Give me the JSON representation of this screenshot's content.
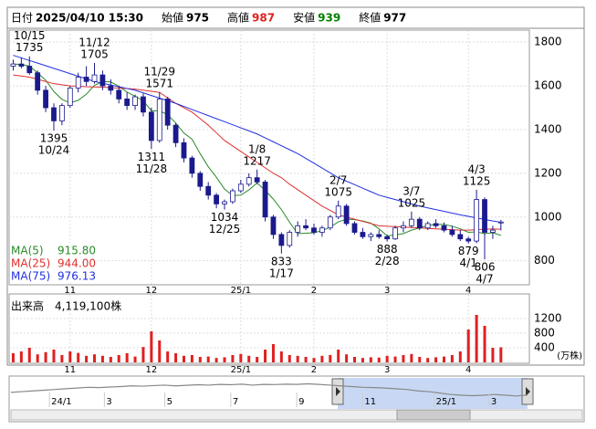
{
  "header": {
    "items": [
      {
        "label": "日付",
        "value": "2025/04/10 15:30"
      },
      {
        "label": "始値",
        "value": 975
      },
      {
        "label": "高値",
        "value": 987,
        "color": "#e02020"
      },
      {
        "label": "安値",
        "value": 939,
        "color": "#008000"
      },
      {
        "label": "終値",
        "value": 977
      }
    ]
  },
  "chart_data": {
    "type": "candlestick",
    "up_color": "#ffffff",
    "down_color": "#1a1a8c",
    "edge_color": "#1a1a8c",
    "grid": true,
    "open": [
      1690,
      1700,
      1690,
      1660,
      1580,
      1500,
      1440,
      1510,
      1590,
      1640,
      1620,
      1650,
      1600,
      1580,
      1540,
      1510,
      1550,
      1480,
      1350,
      1540,
      1420,
      1340,
      1270,
      1200,
      1140,
      1100,
      1060,
      1070,
      1120,
      1150,
      1180,
      1160,
      1000,
      920,
      870,
      930,
      960,
      950,
      930,
      950,
      1000,
      1050,
      970,
      930,
      910,
      920,
      910,
      900,
      950,
      960,
      990,
      950,
      970,
      960,
      940,
      920,
      900,
      890,
      1080,
      930,
      975
    ],
    "high": [
      1720,
      1730,
      1735,
      1670,
      1600,
      1520,
      1520,
      1600,
      1660,
      1690,
      1705,
      1670,
      1630,
      1600,
      1570,
      1560,
      1565,
      1500,
      1571,
      1550,
      1430,
      1360,
      1280,
      1210,
      1160,
      1110,
      1080,
      1130,
      1170,
      1200,
      1217,
      1170,
      1010,
      930,
      940,
      980,
      990,
      970,
      960,
      1010,
      1075,
      1060,
      980,
      950,
      930,
      940,
      920,
      960,
      980,
      1025,
      1000,
      980,
      990,
      975,
      960,
      940,
      910,
      1125,
      1090,
      960,
      987
    ],
    "low": [
      1670,
      1680,
      1650,
      1560,
      1480,
      1395,
      1420,
      1500,
      1570,
      1600,
      1610,
      1580,
      1560,
      1520,
      1490,
      1490,
      1460,
      1311,
      1340,
      1400,
      1320,
      1250,
      1180,
      1120,
      1080,
      1040,
      1034,
      1060,
      1110,
      1140,
      1150,
      980,
      900,
      833,
      860,
      910,
      940,
      920,
      910,
      940,
      990,
      960,
      920,
      900,
      890,
      900,
      888,
      895,
      930,
      950,
      940,
      940,
      950,
      930,
      910,
      890,
      879,
      880,
      806,
      900,
      939
    ],
    "close": [
      1700,
      1690,
      1660,
      1580,
      1500,
      1440,
      1510,
      1590,
      1640,
      1620,
      1650,
      1600,
      1580,
      1540,
      1510,
      1550,
      1480,
      1350,
      1540,
      1420,
      1340,
      1270,
      1200,
      1140,
      1100,
      1060,
      1070,
      1120,
      1150,
      1180,
      1160,
      1000,
      920,
      870,
      930,
      960,
      950,
      930,
      950,
      1000,
      1050,
      970,
      930,
      910,
      920,
      910,
      900,
      950,
      960,
      990,
      950,
      970,
      960,
      940,
      920,
      900,
      890,
      1080,
      930,
      940,
      977
    ],
    "series": [
      {
        "name": "MA(5)",
        "color": "#2a8a2a",
        "legend_value": "915.80",
        "values": [
          1700,
          1698,
          1690,
          1660,
          1626,
          1574,
          1538,
          1522,
          1534,
          1562,
          1602,
          1620,
          1618,
          1598,
          1572,
          1552,
          1532,
          1486,
          1486,
          1468,
          1430,
          1384,
          1356,
          1290,
          1230,
          1182,
          1128,
          1098,
          1100,
          1124,
          1156,
          1122,
          1082,
          1034,
          976,
          924,
          926,
          928,
          938,
          954,
          978,
          990,
          988,
          982,
          972,
          946,
          914,
          918,
          924,
          940,
          950,
          962,
          966,
          966,
          958,
          946,
          930,
          932,
          924,
          928,
          916
        ]
      },
      {
        "name": "MA(25)",
        "color": "#e03030",
        "legend_value": "944.00",
        "values": [
          1650,
          1645,
          1640,
          1630,
          1620,
          1610,
          1605,
          1600,
          1598,
          1596,
          1595,
          1594,
          1592,
          1590,
          1588,
          1585,
          1580,
          1575,
          1570,
          1545,
          1520,
          1500,
          1480,
          1450,
          1420,
          1385,
          1350,
          1325,
          1300,
          1275,
          1250,
          1225,
          1200,
          1180,
          1150,
          1125,
          1100,
          1075,
          1050,
          1030,
          1010,
          1000,
          990,
          980,
          970,
          960,
          958,
          956,
          954,
          952,
          950,
          948,
          946,
          944,
          942,
          940,
          940,
          942,
          944,
          945,
          944
        ]
      },
      {
        "name": "MA(75)",
        "color": "#2030e0",
        "legend_value": "976.13",
        "values": [
          1740,
          1728,
          1716,
          1704,
          1692,
          1680,
          1668,
          1656,
          1644,
          1632,
          1620,
          1612,
          1604,
          1596,
          1588,
          1580,
          1568,
          1556,
          1544,
          1532,
          1520,
          1506,
          1492,
          1478,
          1464,
          1450,
          1436,
          1422,
          1408,
          1394,
          1380,
          1362,
          1344,
          1326,
          1308,
          1290,
          1268,
          1246,
          1224,
          1202,
          1180,
          1164,
          1148,
          1132,
          1116,
          1100,
          1090,
          1080,
          1070,
          1060,
          1050,
          1042,
          1034,
          1026,
          1018,
          1010,
          1003,
          996,
          989,
          982,
          976
        ]
      }
    ],
    "annotations": [
      {
        "date": "10/15",
        "value": 1735
      },
      {
        "date": "11/12",
        "value": 1705
      },
      {
        "date": "11/29",
        "value": 1571
      },
      {
        "date": "10/24",
        "value": 1395
      },
      {
        "date": "11/28",
        "value": 1311
      },
      {
        "date": "1/8",
        "value": 1217
      },
      {
        "date": "12/25",
        "value": 1034
      },
      {
        "date": "1/17",
        "value": 833
      },
      {
        "date": "2/7",
        "value": 1075
      },
      {
        "date": "3/7",
        "value": 1025
      },
      {
        "date": "2/28",
        "value": 888
      },
      {
        "date": "4/3",
        "value": 1125
      },
      {
        "date": "4/1",
        "value": 879
      },
      {
        "date": "4/7",
        "value": 806
      }
    ],
    "xlim": [
      -0.5,
      63.5
    ],
    "xticks": [
      {
        "value": 7,
        "label": "11"
      },
      {
        "value": 17,
        "label": "12"
      },
      {
        "value": 28,
        "label": "25/1"
      },
      {
        "value": 37,
        "label": "2"
      },
      {
        "value": 46,
        "label": "3"
      },
      {
        "value": 56,
        "label": "4"
      }
    ],
    "ylim": [
      690,
      1855
    ],
    "yticks": [
      800,
      1000,
      1200,
      1400,
      1600,
      1800
    ],
    "volume": {
      "title": "出来高　4,119,100株",
      "unit": "(万株)",
      "color": "#e02020",
      "ylim": [
        0,
        1850
      ],
      "yticks": [
        400,
        800,
        1200
      ],
      "values": [
        250,
        300,
        400,
        220,
        280,
        350,
        200,
        300,
        260,
        180,
        220,
        180,
        150,
        200,
        250,
        160,
        420,
        850,
        600,
        300,
        250,
        180,
        200,
        150,
        160,
        120,
        140,
        200,
        230,
        180,
        150,
        350,
        500,
        300,
        200,
        180,
        150,
        120,
        180,
        200,
        350,
        220,
        150,
        120,
        140,
        130,
        180,
        160,
        200,
        230,
        150,
        120,
        140,
        160,
        200,
        300,
        900,
        1300,
        1000,
        400,
        412
      ]
    },
    "navigator": {
      "color": "#888888",
      "xlim": [
        0,
        47
      ],
      "ylim": [
        0,
        1900
      ],
      "xticks": [
        {
          "value": 3.5,
          "label": "24/1"
        },
        {
          "value": 8.5,
          "label": "3"
        },
        {
          "value": 14,
          "label": "5"
        },
        {
          "value": 20,
          "label": "7"
        },
        {
          "value": 26,
          "label": "9"
        },
        {
          "value": 32,
          "label": "11"
        },
        {
          "value": 38.5,
          "label": "25/1"
        },
        {
          "value": 43.5,
          "label": "3"
        }
      ],
      "values": [
        1150,
        1200,
        1250,
        1300,
        1350,
        1400,
        1450,
        1500,
        1480,
        1520,
        1550,
        1600,
        1580,
        1620,
        1650,
        1600,
        1640,
        1680,
        1650,
        1700,
        1680,
        1720,
        1650,
        1700,
        1690,
        1720,
        1700,
        1740,
        1700,
        1650,
        1600,
        1550,
        1500,
        1480,
        1450,
        1400,
        1350,
        1250,
        1200,
        1100,
        1000,
        950,
        920,
        950,
        1000,
        950,
        900,
        970
      ]
    }
  }
}
